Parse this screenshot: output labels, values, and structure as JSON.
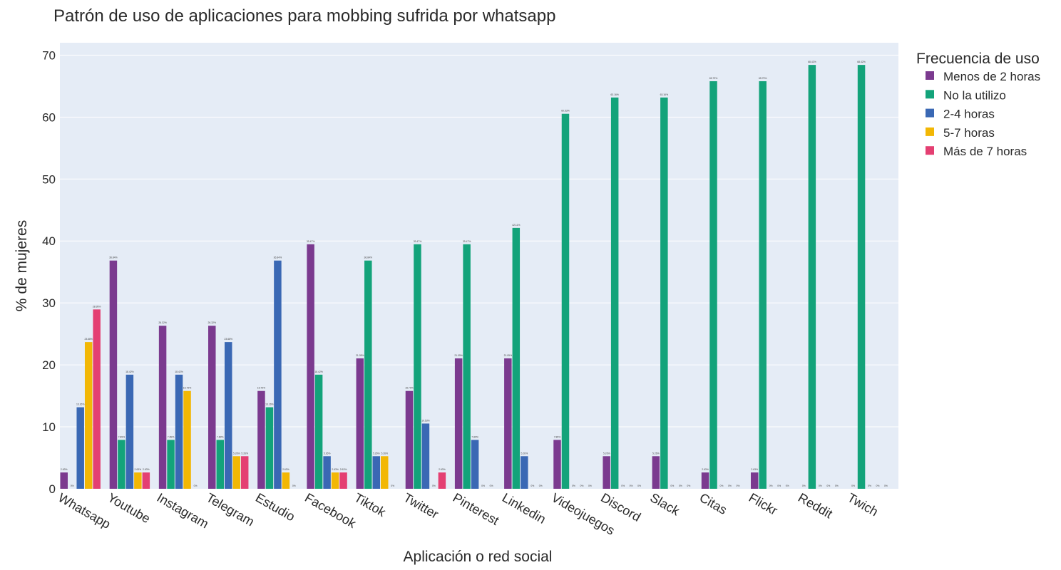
{
  "chart_data": {
    "type": "bar",
    "title": "Patrón de uso de aplicaciones para mobbing sufrida por whatsapp",
    "xlabel": "Aplicación o red social",
    "ylabel": "% de mujeres",
    "ylim": [
      0,
      72
    ],
    "yticks": [
      0,
      10,
      20,
      30,
      40,
      50,
      60,
      70
    ],
    "grid": true,
    "legend_title": "Frecuencia de uso",
    "legend_position": "right",
    "categories": [
      "Whatsapp",
      "Youtube",
      "Instagram",
      "Telegram",
      "Estudio",
      "Facebook",
      "Tiktok",
      "Twitter",
      "Pinterest",
      "Linkedin",
      "Videojuegos",
      "Discord",
      "Slack",
      "Citas",
      "Flickr",
      "Reddit",
      "Twich"
    ],
    "series": [
      {
        "name": "Menos de 2 horas",
        "color": "#7b3a8f",
        "values": [
          2.63,
          36.84,
          26.32,
          26.32,
          15.79,
          39.47,
          21.05,
          15.79,
          21.05,
          21.05,
          7.89,
          5.26,
          5.26,
          2.63,
          2.63,
          0,
          0
        ],
        "labels": [
          "2.63%",
          "36.84%",
          "26.32%",
          "26.32%",
          "15.79%",
          "39.47%",
          "21.05%",
          "15.79%",
          "21.05%",
          "21.05%",
          "7.89%",
          "5.26%",
          "5.26%",
          "2.63%",
          "2.63%",
          "0%",
          "0%"
        ]
      },
      {
        "name": "No la utilizo",
        "color": "#13a37a",
        "values": [
          0,
          7.89,
          7.89,
          7.89,
          13.16,
          18.42,
          36.84,
          39.47,
          39.47,
          42.11,
          60.53,
          63.16,
          63.16,
          65.79,
          65.79,
          68.42,
          68.42
        ],
        "labels": [
          "0%",
          "7.89%",
          "7.89%",
          "7.89%",
          "13.16%",
          "18.42%",
          "36.84%",
          "39.47%",
          "39.47%",
          "42.11%",
          "60.53%",
          "63.16%",
          "63.16%",
          "65.79%",
          "65.79%",
          "68.42%",
          "68.42%"
        ]
      },
      {
        "name": "2-4 horas",
        "color": "#3a68b4",
        "values": [
          13.16,
          18.42,
          18.42,
          23.68,
          36.84,
          5.26,
          5.26,
          10.53,
          7.89,
          5.26,
          0,
          0,
          0,
          0,
          0,
          0,
          0
        ],
        "labels": [
          "13.16%",
          "18.42%",
          "18.42%",
          "23.68%",
          "36.84%",
          "5.26%",
          "5.26%",
          "10.53%",
          "7.89%",
          "5.26%",
          "0%",
          "0%",
          "0%",
          "0%",
          "0%",
          "0%",
          "0%"
        ]
      },
      {
        "name": "5-7 horas",
        "color": "#f2b705",
        "values": [
          23.68,
          2.63,
          15.79,
          5.26,
          2.63,
          2.63,
          5.26,
          0,
          0,
          0,
          0,
          0,
          0,
          0,
          0,
          0,
          0
        ],
        "labels": [
          "23.68%",
          "2.63%",
          "15.79%",
          "5.26%",
          "2.63%",
          "2.63%",
          "5.26%",
          "0%",
          "0%",
          "0%",
          "0%",
          "0%",
          "0%",
          "0%",
          "0%",
          "0%",
          "0%"
        ]
      },
      {
        "name": "Más de 7 horas",
        "color": "#e43f72",
        "values": [
          28.95,
          2.63,
          0,
          5.26,
          0,
          2.63,
          0,
          2.63,
          0,
          0,
          0,
          0,
          0,
          0,
          0,
          0,
          0
        ],
        "labels": [
          "28.95%",
          "2.63%",
          "0%",
          "5.26%",
          "0%",
          "2.63%",
          "0%",
          "2.63%",
          "0%",
          "0%",
          "0%",
          "0%",
          "0%",
          "0%",
          "0%",
          "0%",
          "0%"
        ]
      }
    ]
  }
}
